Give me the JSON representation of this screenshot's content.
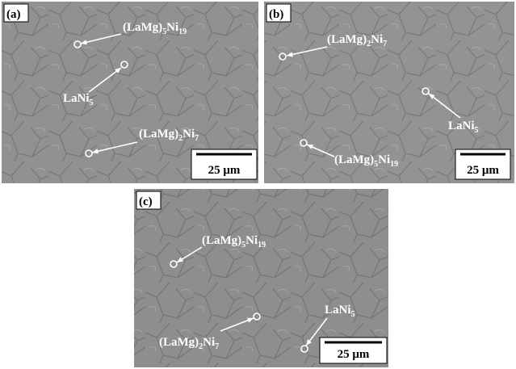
{
  "panels": [
    {
      "label": "(a)",
      "annotations": [
        {
          "segments": [
            "(LaMg)",
            "5",
            "Ni",
            "19"
          ]
        },
        {
          "segments": [
            "LaNi",
            "5"
          ]
        },
        {
          "segments": [
            "(LaMg)",
            "2",
            "Ni",
            "7"
          ]
        }
      ],
      "scale_bar": "25 μm"
    },
    {
      "label": "(b)",
      "annotations": [
        {
          "segments": [
            "(LaMg)",
            "2",
            "Ni",
            "7"
          ]
        },
        {
          "segments": [
            "LaNi",
            "5"
          ]
        },
        {
          "segments": [
            "(LaMg)",
            "5",
            "Ni",
            "19"
          ]
        }
      ],
      "scale_bar": "25 μm"
    },
    {
      "label": "(c)",
      "annotations": [
        {
          "segments": [
            "(LaMg)",
            "5",
            "Ni",
            "19"
          ]
        },
        {
          "segments": [
            "(LaMg)",
            "2",
            "Ni",
            "7"
          ]
        },
        {
          "segments": [
            "LaNi",
            "5"
          ]
        }
      ],
      "scale_bar": "25 μm"
    }
  ]
}
